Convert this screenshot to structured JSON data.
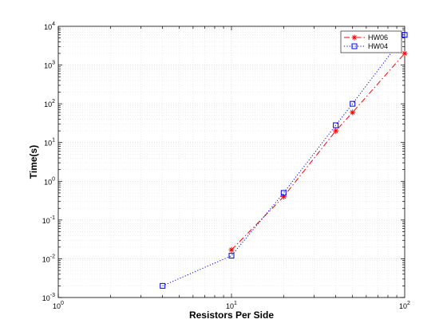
{
  "chart_data": {
    "type": "line",
    "xscale": "log",
    "yscale": "log",
    "xlim": [
      1,
      100
    ],
    "ylim": [
      0.001,
      10000
    ],
    "xlabel": "Resistors Per Side",
    "ylabel": "Time(s)",
    "grid": true,
    "minor_grid": true,
    "legend_position": "top-right",
    "x_ticks": [
      {
        "value": 1,
        "base": "10",
        "exp": "0"
      },
      {
        "value": 10,
        "base": "10",
        "exp": "1"
      },
      {
        "value": 100,
        "base": "10",
        "exp": "2"
      }
    ],
    "y_ticks": [
      {
        "value": 0.001,
        "base": "10",
        "exp": "-3"
      },
      {
        "value": 0.01,
        "base": "10",
        "exp": "-2"
      },
      {
        "value": 0.1,
        "base": "10",
        "exp": "-1"
      },
      {
        "value": 1,
        "base": "10",
        "exp": "0"
      },
      {
        "value": 10,
        "base": "10",
        "exp": "1"
      },
      {
        "value": 100,
        "base": "10",
        "exp": "2"
      },
      {
        "value": 1000,
        "base": "10",
        "exp": "3"
      },
      {
        "value": 10000,
        "base": "10",
        "exp": "4"
      }
    ],
    "series": [
      {
        "name": "HW06",
        "color": "#ff0000",
        "line_style": "dash-dot",
        "marker": "asterisk",
        "x": [
          10,
          20,
          40,
          50,
          100
        ],
        "y": [
          0.017,
          0.4,
          20,
          60,
          2000
        ]
      },
      {
        "name": "HW04",
        "color": "#0000ff",
        "line_style": "dotted",
        "marker": "square",
        "x": [
          4,
          10,
          20,
          40,
          50,
          100
        ],
        "y": [
          0.002,
          0.012,
          0.5,
          28,
          100,
          6000
        ]
      }
    ]
  }
}
